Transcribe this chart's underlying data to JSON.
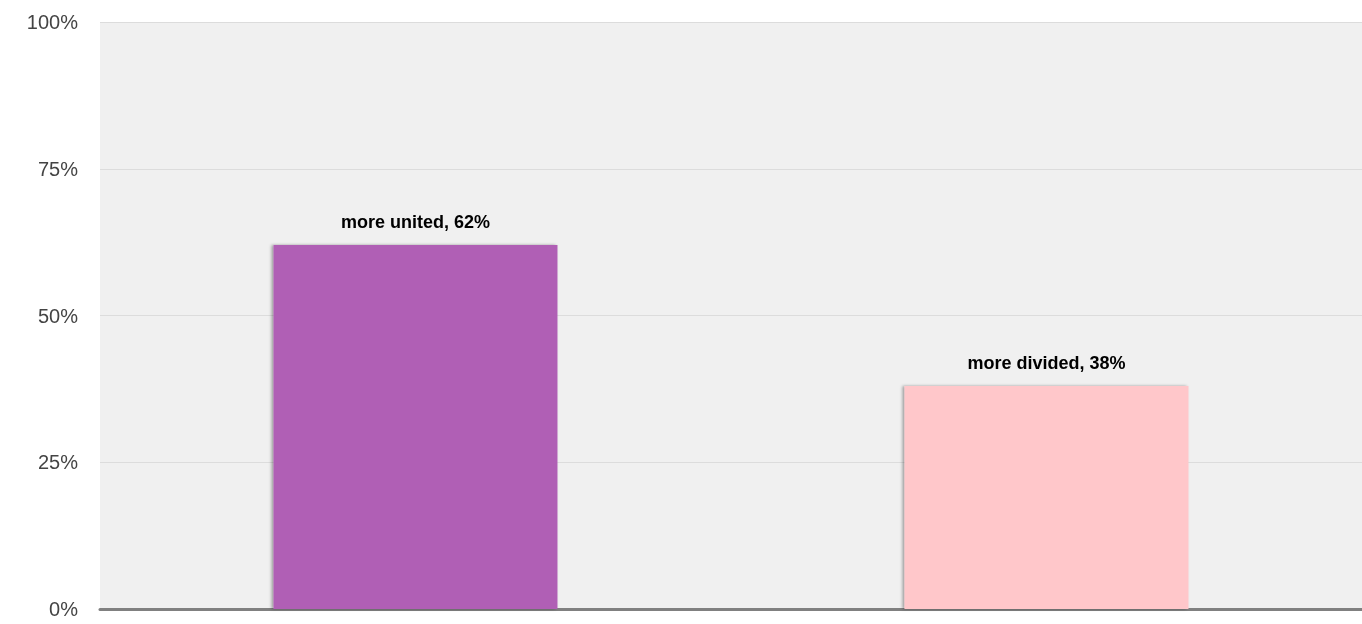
{
  "chart_data": {
    "type": "bar",
    "categories": [
      null,
      null
    ],
    "values": [
      62,
      38
    ],
    "colors": [
      "#b05fb5",
      "#ffc7ca"
    ],
    "value_labels": [
      "more united, 62%",
      "more divided, 38%"
    ],
    "ylim": [
      0,
      100
    ],
    "yticks": [
      {
        "value": 0,
        "label": "0%"
      },
      {
        "value": 25,
        "label": "25%"
      },
      {
        "value": 50,
        "label": "50%"
      },
      {
        "value": 75,
        "label": "75%"
      },
      {
        "value": 100,
        "label": "100%"
      }
    ],
    "grid": "y",
    "tick_labels": "y"
  }
}
